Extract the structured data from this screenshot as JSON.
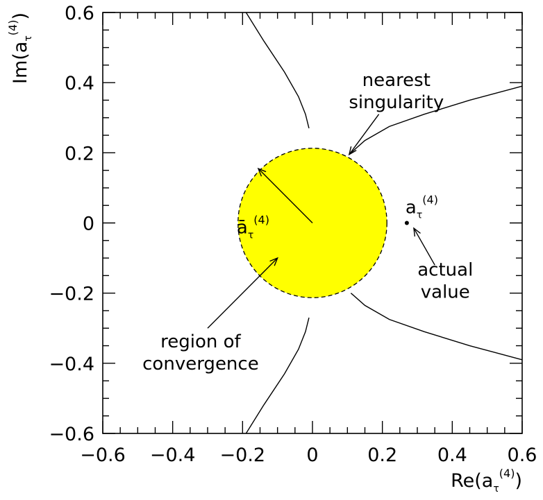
{
  "chart_data": {
    "type": "scatter",
    "xlabel": {
      "base": "Re(a",
      "sub": "τ",
      "sup": "(4)",
      "close": ")"
    },
    "ylabel": {
      "base": "Im(a",
      "sub": "τ",
      "sup": "(4)",
      "close": ")"
    },
    "xlim": [
      -0.6,
      0.6
    ],
    "ylim": [
      -0.6,
      0.6
    ],
    "xticks": [
      -0.6,
      -0.4,
      -0.2,
      0,
      0.2,
      0.4,
      0.6
    ],
    "yticks": [
      -0.6,
      -0.4,
      -0.2,
      0,
      0.2,
      0.4,
      0.6
    ],
    "xtick_labels": [
      "−0.6",
      "−0.4",
      "−0.2",
      "0",
      "0.2",
      "0.4",
      "0.6"
    ],
    "ytick_labels": [
      "−0.6",
      "−0.4",
      "−0.2",
      "0",
      "0.2",
      "0.4",
      "0.6"
    ],
    "grid": false,
    "region": {
      "center": [
        0,
        0
      ],
      "radius": 0.213,
      "fill": "#ffff00",
      "border": "dashed"
    },
    "radius_arrow": {
      "from": [
        0,
        0
      ],
      "to": [
        -0.155,
        0.155
      ]
    },
    "radius_label": {
      "base": "ā",
      "sub": "τ",
      "sup": "(4)",
      "at": [
        -0.17,
        0
      ]
    },
    "point": {
      "x": 0.27,
      "y": 0,
      "label": {
        "base": "a",
        "sub": "τ",
        "sup": "(4)"
      }
    },
    "curves": [
      {
        "points": [
          [
            -0.19,
            0.6
          ],
          [
            -0.14,
            0.52
          ],
          [
            -0.08,
            0.43
          ],
          [
            -0.04,
            0.36
          ],
          [
            -0.02,
            0.31
          ],
          [
            -0.01,
            0.27
          ]
        ]
      },
      {
        "points": [
          [
            -0.01,
            -0.27
          ],
          [
            -0.02,
            -0.31
          ],
          [
            -0.04,
            -0.36
          ],
          [
            -0.08,
            -0.43
          ],
          [
            -0.14,
            -0.52
          ],
          [
            -0.19,
            -0.6
          ]
        ]
      },
      {
        "points": [
          [
            0.11,
            0.2
          ],
          [
            0.15,
            0.235
          ],
          [
            0.22,
            0.275
          ],
          [
            0.32,
            0.31
          ],
          [
            0.45,
            0.35
          ],
          [
            0.6,
            0.39
          ]
        ]
      },
      {
        "points": [
          [
            0.11,
            -0.2
          ],
          [
            0.15,
            -0.235
          ],
          [
            0.22,
            -0.275
          ],
          [
            0.32,
            -0.31
          ],
          [
            0.45,
            -0.35
          ],
          [
            0.6,
            -0.39
          ]
        ]
      }
    ],
    "annotations": [
      {
        "lines": [
          "nearest",
          "singularity"
        ],
        "text_at": [
          0.24,
          0.39
        ],
        "arrow_from": [
          0.19,
          0.31
        ],
        "arrow_to": [
          0.105,
          0.195
        ]
      },
      {
        "lines": [
          "actual",
          "value"
        ],
        "text_at": [
          0.38,
          -0.15
        ],
        "arrow_from": [
          0.35,
          -0.12
        ],
        "arrow_to": [
          0.29,
          -0.015
        ]
      },
      {
        "lines": [
          "region of",
          "convergence"
        ],
        "text_at": [
          -0.32,
          -0.355
        ],
        "arrow_from": [
          -0.3,
          -0.3
        ],
        "arrow_to": [
          -0.1,
          -0.1
        ]
      }
    ]
  }
}
